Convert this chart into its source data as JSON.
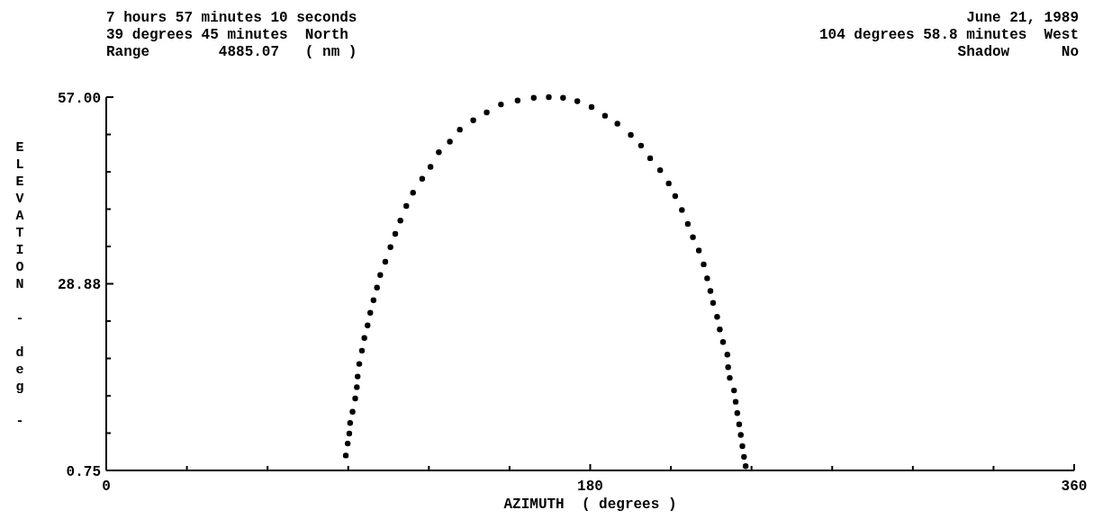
{
  "chart_data": {
    "type": "scatter",
    "xlabel": "AZIMUTH  ( degrees )",
    "ylabel": "ELEVATION - deg -",
    "annotations": [
      "7 hours 57 minutes 10 seconds",
      "39 degrees 45 minutes  North",
      "Range        4885.07   ( nm )",
      "June 21, 1989",
      "104 degrees 58.8 minutes  West",
      "Shadow      No"
    ],
    "xlim": [
      0,
      360
    ],
    "xticks": [
      0,
      {
        "value": 30,
        "label": null
      },
      {
        "value": 60,
        "label": null
      },
      {
        "value": 90,
        "label": null
      },
      {
        "value": 120,
        "label": null
      },
      {
        "value": 150,
        "label": null
      },
      180,
      {
        "value": 210,
        "label": null
      },
      {
        "value": 240,
        "label": null
      },
      {
        "value": 270,
        "label": null
      },
      {
        "value": 300,
        "label": null
      },
      {
        "value": 330,
        "label": null
      },
      360
    ],
    "ylim": [
      0.75,
      57
    ],
    "yticks": [
      {
        "value": 0.75,
        "label": "0.75"
      },
      {
        "value": 6.375,
        "label": null
      },
      {
        "value": 12,
        "label": null
      },
      {
        "value": 17.625,
        "label": null
      },
      {
        "value": 23.25,
        "label": null
      },
      {
        "value": 28.875,
        "label": "28.88"
      },
      {
        "value": 34.5,
        "label": null
      },
      {
        "value": 40.125,
        "label": null
      },
      {
        "value": 45.75,
        "label": null
      },
      {
        "value": 51.375,
        "label": null
      },
      {
        "value": 57,
        "label": "57.00"
      }
    ],
    "grid": false,
    "marker": "circle",
    "series": [
      {
        "color": "#000000",
        "x": [
          89.1,
          89.8,
          90.4,
          90.7,
          91.6,
          92.6,
          93.2,
          93.5,
          94.1,
          95.1,
          96.0,
          97.2,
          98.2,
          99.4,
          100.7,
          101.9,
          103.8,
          105.7,
          107.5,
          109.4,
          111.6,
          114.1,
          117.5,
          120.6,
          123.7,
          127.8,
          131.5,
          136.5,
          141.5,
          146.8,
          153.0,
          159.0,
          164.6,
          169.9,
          175.2,
          180.5,
          185.5,
          190.1,
          195.1,
          198.9,
          202.3,
          206.0,
          209.2,
          211.6,
          214.1,
          216.3,
          218.2,
          220.4,
          222.2,
          223.5,
          224.7,
          225.7,
          227.2,
          228.2,
          229.4,
          231.0,
          231.3,
          231.9,
          233.5,
          234.1,
          234.7,
          235.4,
          236.0,
          236.6,
          237.2,
          237.8
        ],
        "values": [
          3.0,
          4.8,
          6.3,
          7.9,
          9.6,
          11.6,
          13.3,
          14.9,
          16.8,
          18.8,
          20.7,
          22.6,
          24.5,
          26.4,
          28.3,
          30.2,
          32.2,
          34.4,
          36.4,
          38.4,
          40.6,
          42.6,
          44.7,
          46.5,
          48.7,
          50.3,
          52.1,
          53.5,
          54.7,
          55.9,
          56.5,
          56.9,
          57.0,
          56.9,
          56.4,
          55.5,
          54.2,
          53.0,
          51.3,
          49.7,
          47.8,
          46.0,
          44.0,
          42.1,
          40.0,
          37.9,
          35.9,
          33.9,
          31.8,
          29.7,
          27.8,
          26.0,
          23.9,
          22.0,
          20.1,
          18.2,
          16.3,
          14.7,
          12.8,
          11.1,
          9.4,
          7.7,
          6.1,
          4.4,
          2.8,
          1.4
        ]
      }
    ]
  }
}
